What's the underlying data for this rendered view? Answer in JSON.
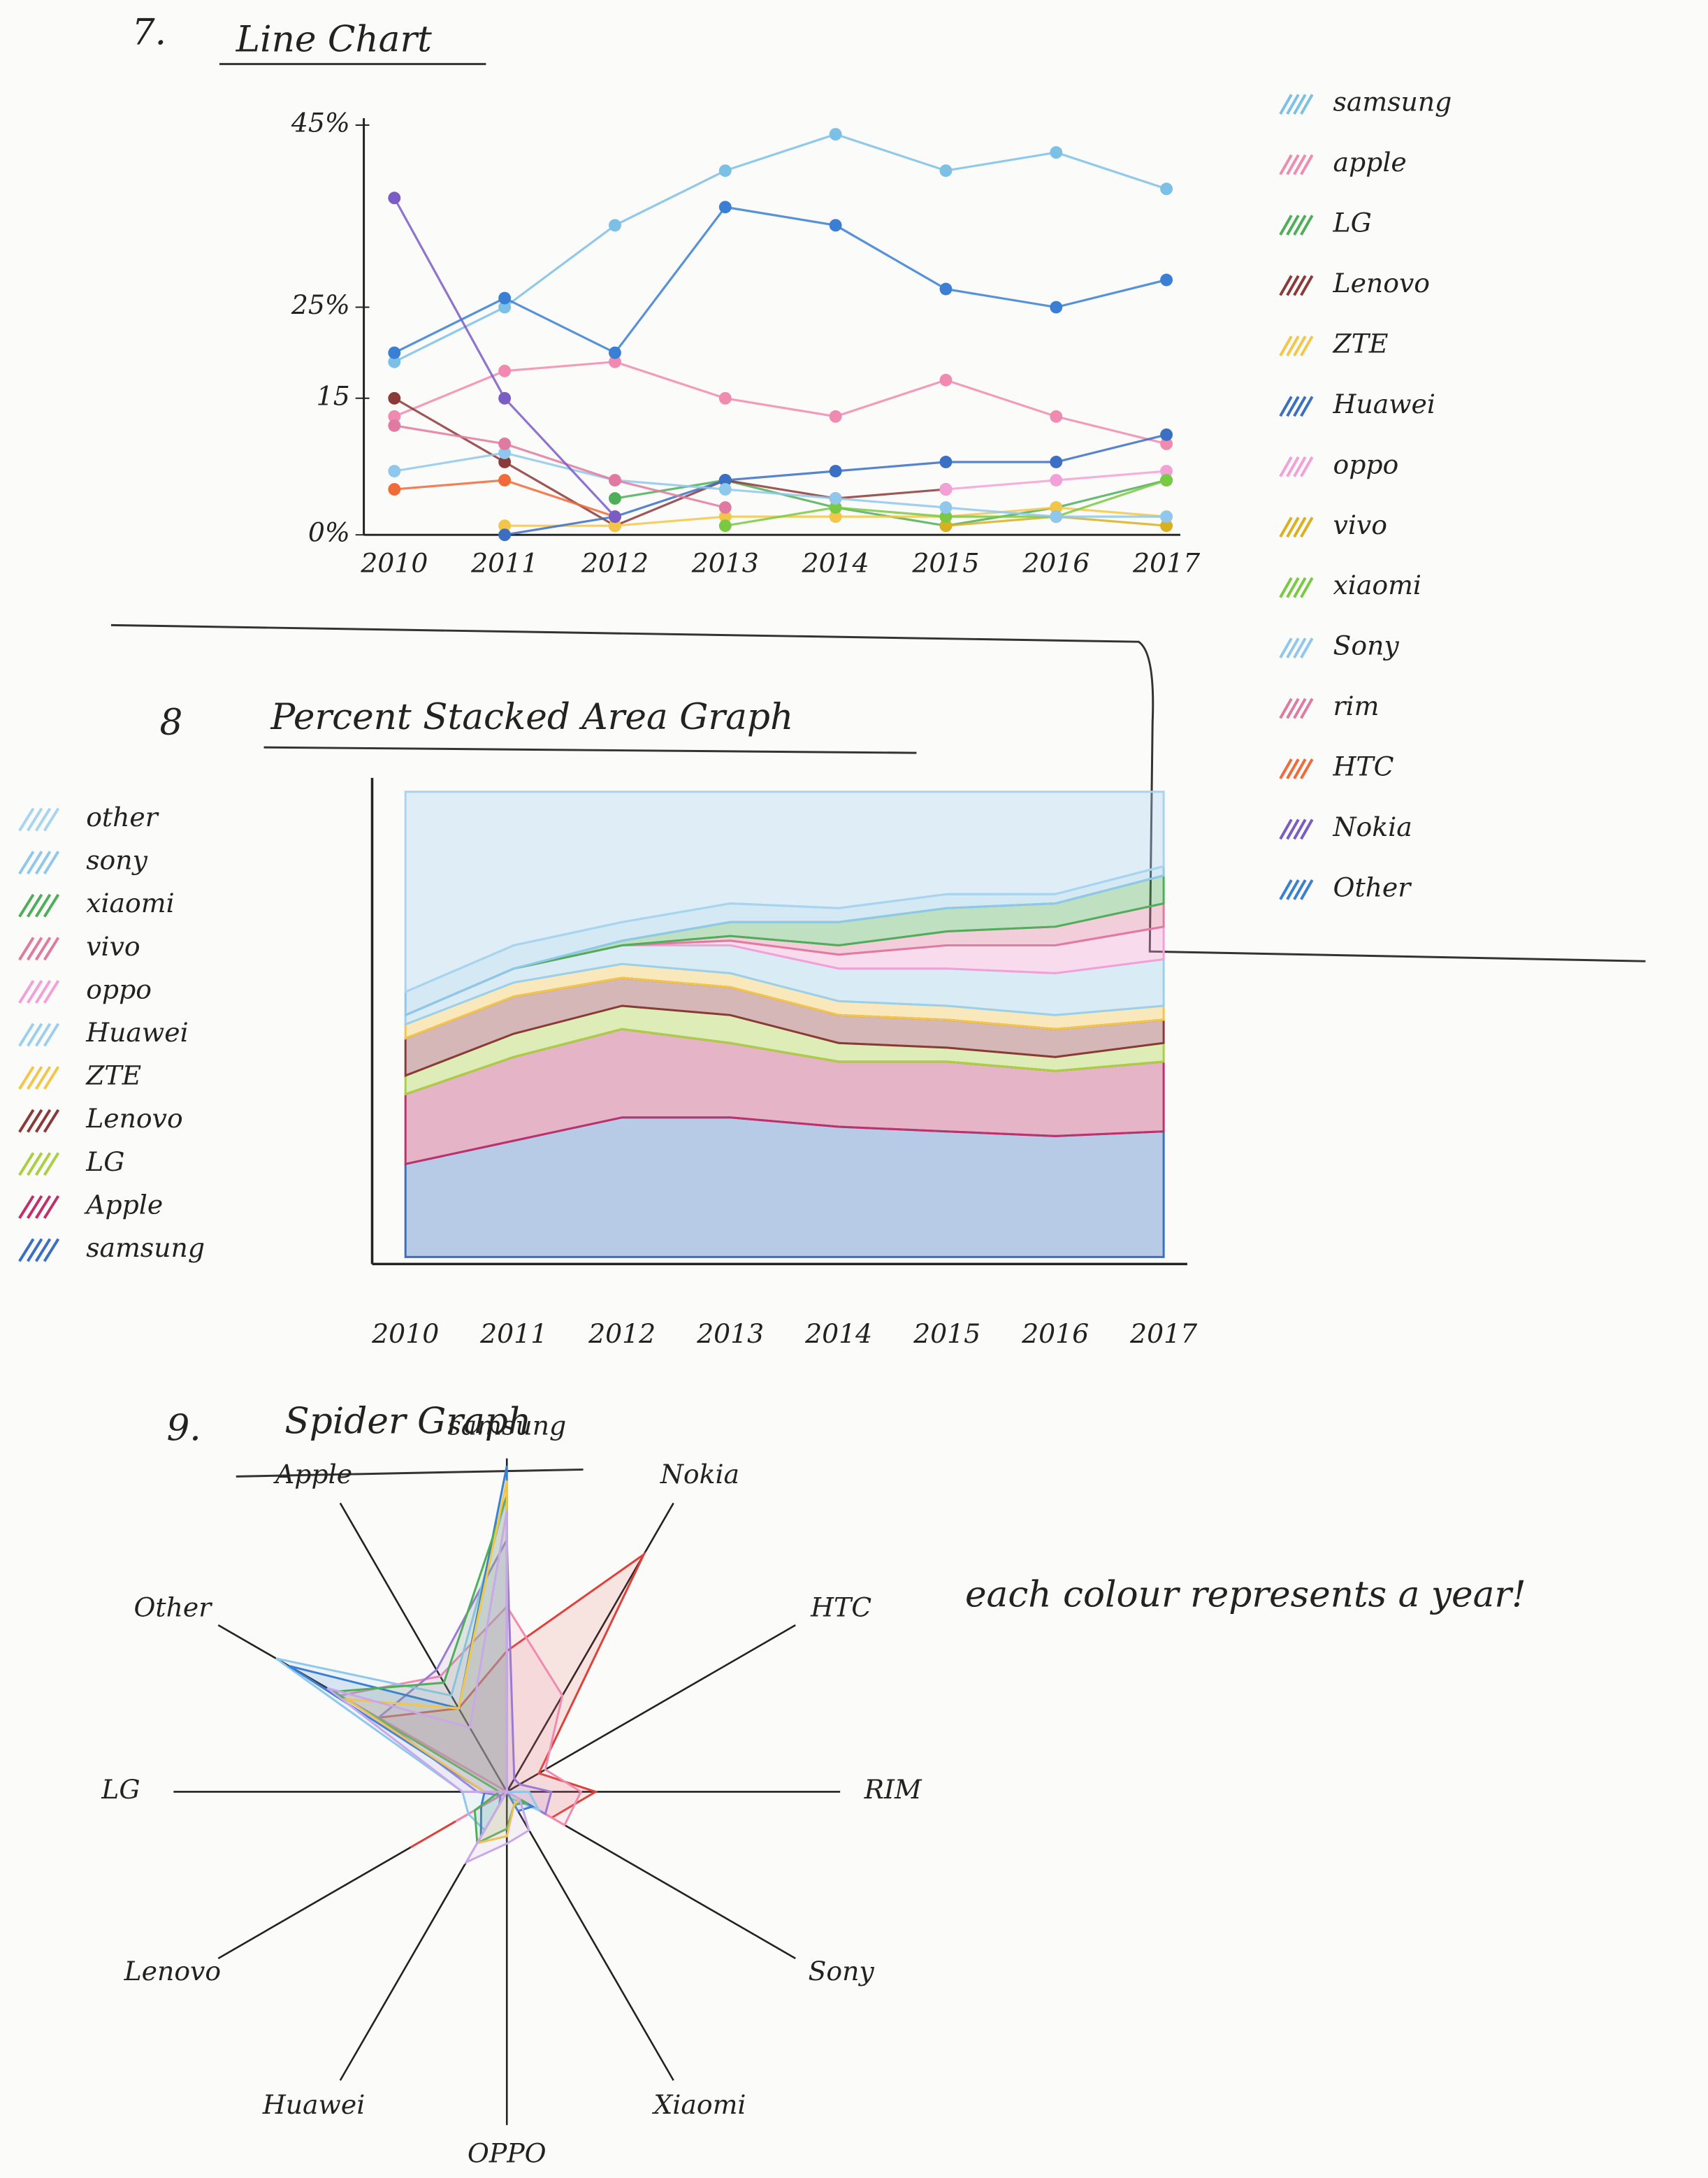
{
  "chart_data": [
    {
      "type": "line",
      "number": "7.",
      "title": "Line Chart",
      "categories": [
        "2010",
        "2011",
        "2012",
        "2013",
        "2014",
        "2015",
        "2016",
        "2017"
      ],
      "ylim": [
        0,
        45
      ],
      "yticks": [
        {
          "value": 45,
          "label": "45%"
        },
        {
          "value": 25,
          "label": "25%"
        },
        15,
        {
          "value": 0,
          "label": "0%"
        }
      ],
      "series": [
        {
          "name": "samsung",
          "color": "#7cc0e6",
          "values": [
            19,
            25,
            34,
            40,
            44,
            40,
            42,
            38
          ]
        },
        {
          "name": "apple",
          "color": "#f08ab0",
          "values": [
            13,
            18,
            19,
            15,
            13,
            17,
            13,
            10
          ]
        },
        {
          "name": "LG",
          "color": "#4fae5a",
          "values": [
            null,
            null,
            4,
            6,
            3,
            1,
            3,
            6
          ]
        },
        {
          "name": "Lenovo",
          "color": "#8b3a3a",
          "values": [
            15,
            8,
            1,
            6,
            4,
            5,
            null,
            null
          ]
        },
        {
          "name": "ZTE",
          "color": "#f3c64a",
          "values": [
            null,
            1,
            1,
            2,
            2,
            2,
            3,
            2
          ]
        },
        {
          "name": "Huawei",
          "color": "#3a6fc4",
          "values": [
            null,
            0,
            2,
            6,
            7,
            8,
            8,
            11
          ]
        },
        {
          "name": "oppo",
          "color": "#f4a0d8",
          "values": [
            null,
            null,
            null,
            null,
            null,
            5,
            6,
            7
          ]
        },
        {
          "name": "vivo",
          "color": "#d9b020",
          "values": [
            null,
            null,
            null,
            null,
            null,
            1,
            2,
            1
          ]
        },
        {
          "name": "xiaomi",
          "color": "#7ac943",
          "values": [
            null,
            null,
            null,
            1,
            3,
            2,
            2,
            6
          ]
        },
        {
          "name": "Sony",
          "color": "#8fc8ec",
          "values": [
            7,
            9,
            6,
            5,
            4,
            3,
            2,
            2
          ]
        },
        {
          "name": "rim",
          "color": "#e07aa0",
          "values": [
            12,
            10,
            6,
            3,
            null,
            null,
            null,
            null
          ]
        },
        {
          "name": "HTC",
          "color": "#f06a3a",
          "values": [
            5,
            6,
            2,
            null,
            null,
            null,
            null,
            null
          ]
        },
        {
          "name": "Nokia",
          "color": "#7a5cc4",
          "values": [
            37,
            15,
            2,
            null,
            null,
            null,
            null,
            null
          ]
        },
        {
          "name": "Other",
          "color": "#3a7fd4",
          "values": [
            20,
            26,
            20,
            36,
            34,
            27,
            25,
            28
          ]
        }
      ]
    },
    {
      "type": "area",
      "number": "8",
      "title": "Percent Stacked Area Graph",
      "categories": [
        "2010",
        "2011",
        "2012",
        "2013",
        "2014",
        "2015",
        "2016",
        "2017"
      ],
      "ylim": [
        0,
        100
      ],
      "series": [
        {
          "name": "samsung",
          "color": "#3a6fc4",
          "values": [
            20,
            25,
            30,
            30,
            28,
            27,
            26,
            27
          ]
        },
        {
          "name": "Apple",
          "color": "#c0306a",
          "values": [
            15,
            18,
            19,
            16,
            14,
            15,
            14,
            15
          ]
        },
        {
          "name": "LG",
          "color": "#a8d040",
          "values": [
            4,
            5,
            5,
            6,
            4,
            3,
            3,
            4
          ]
        },
        {
          "name": "Lenovo",
          "color": "#8b3a3a",
          "values": [
            8,
            8,
            6,
            6,
            6,
            6,
            6,
            5
          ]
        },
        {
          "name": "ZTE",
          "color": "#f3c64a",
          "values": [
            3,
            3,
            3,
            3,
            3,
            3,
            3,
            3
          ]
        },
        {
          "name": "Huawei",
          "color": "#9ad0ee",
          "values": [
            2,
            3,
            4,
            6,
            7,
            8,
            9,
            10
          ]
        },
        {
          "name": "oppo",
          "color": "#f4a0d8",
          "values": [
            0,
            0,
            0,
            1,
            3,
            5,
            6,
            7
          ]
        },
        {
          "name": "vivo",
          "color": "#e07aa0",
          "values": [
            0,
            0,
            0,
            1,
            2,
            3,
            4,
            5
          ]
        },
        {
          "name": "xiaomi",
          "color": "#4fae5a",
          "values": [
            0,
            0,
            1,
            3,
            5,
            5,
            5,
            6
          ]
        },
        {
          "name": "sony",
          "color": "#8fc8ec",
          "values": [
            5,
            5,
            4,
            4,
            3,
            3,
            2,
            2
          ]
        },
        {
          "name": "other",
          "color": "#a8d4f0",
          "values": [
            43,
            33,
            28,
            24,
            25,
            22,
            22,
            16
          ]
        }
      ]
    },
    {
      "type": "radar",
      "number": "9.",
      "title": "Spider Graph",
      "annotation": "each colour represents a year!",
      "axes": [
        "samsung",
        "Nokia",
        "HTC",
        "RIM",
        "Sony",
        "Xiaomi",
        "OPPO",
        "Huawei",
        "Lenovo",
        "LG",
        "Other",
        "Apple"
      ],
      "rlim": [
        0,
        45
      ],
      "series": [
        {
          "color": "#e0403a",
          "values": [
            19,
            37,
            5,
            12,
            7,
            0,
            0,
            0,
            15,
            0,
            20,
            13
          ]
        },
        {
          "color": "#f08ab0",
          "values": [
            25,
            15,
            6,
            10,
            9,
            0,
            0,
            0,
            8,
            0,
            26,
            18
          ]
        },
        {
          "color": "#9a7ad4",
          "values": [
            34,
            2,
            2,
            6,
            6,
            0,
            0,
            2,
            1,
            4,
            20,
            19
          ]
        },
        {
          "color": "#8fc8ec",
          "values": [
            40,
            0,
            0,
            3,
            5,
            1,
            0,
            6,
            6,
            6,
            36,
            15
          ]
        },
        {
          "color": "#3a7fd4",
          "values": [
            44,
            0,
            0,
            0,
            4,
            3,
            0,
            7,
            4,
            3,
            34,
            13
          ]
        },
        {
          "color": "#4fae5a",
          "values": [
            40,
            0,
            0,
            0,
            3,
            2,
            5,
            8,
            5,
            1,
            27,
            17
          ]
        },
        {
          "color": "#f3c64a",
          "values": [
            42,
            0,
            0,
            0,
            2,
            2,
            6,
            8,
            0,
            3,
            25,
            13
          ]
        },
        {
          "color": "#c8a8e8",
          "values": [
            38,
            0,
            0,
            0,
            2,
            6,
            7,
            11,
            0,
            6,
            28,
            10
          ]
        }
      ]
    }
  ]
}
